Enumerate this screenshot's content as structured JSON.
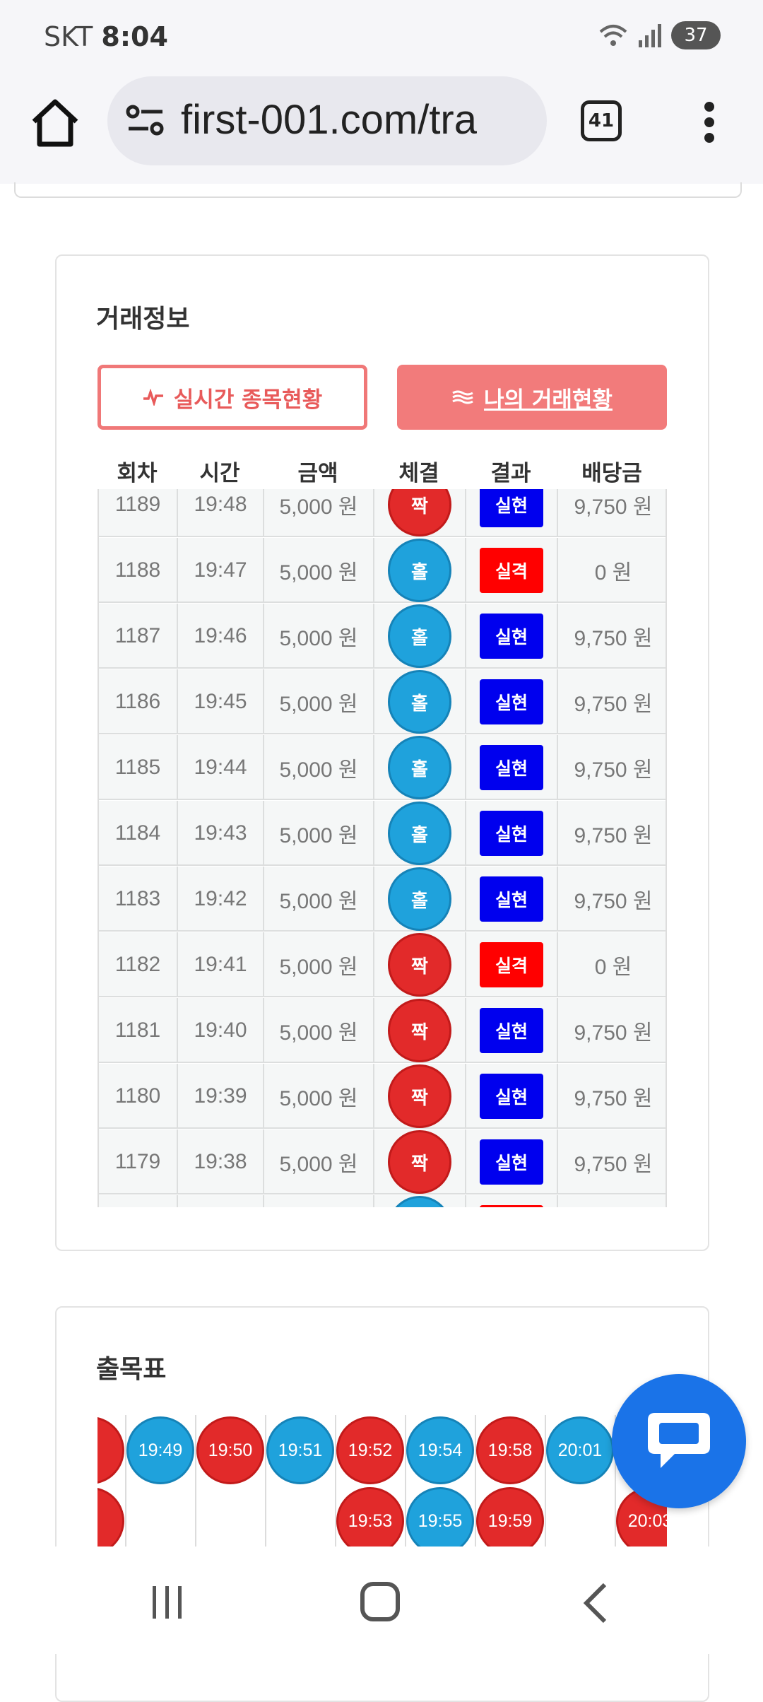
{
  "status": {
    "carrier": "SKT",
    "time": "8:04",
    "battery": "37"
  },
  "browser": {
    "url": "first-001.com/tra",
    "tab_count": "41"
  },
  "trade": {
    "title": "거래정보",
    "live_button": "실시간 종목현황",
    "mine_button": "나의 거래현황",
    "headers": [
      "회차",
      "시간",
      "금액",
      "체결",
      "결과",
      "배당금"
    ],
    "rows": [
      {
        "round": "1189",
        "time": "19:48",
        "amount": "5,000 원",
        "pick": "짝",
        "pick_color": "red",
        "result": "실현",
        "result_type": "win",
        "payout": "9,750 원"
      },
      {
        "round": "1188",
        "time": "19:47",
        "amount": "5,000 원",
        "pick": "홀",
        "pick_color": "blue",
        "result": "실격",
        "result_type": "lose",
        "payout": "0 원"
      },
      {
        "round": "1187",
        "time": "19:46",
        "amount": "5,000 원",
        "pick": "홀",
        "pick_color": "blue",
        "result": "실현",
        "result_type": "win",
        "payout": "9,750 원"
      },
      {
        "round": "1186",
        "time": "19:45",
        "amount": "5,000 원",
        "pick": "홀",
        "pick_color": "blue",
        "result": "실현",
        "result_type": "win",
        "payout": "9,750 원"
      },
      {
        "round": "1185",
        "time": "19:44",
        "amount": "5,000 원",
        "pick": "홀",
        "pick_color": "blue",
        "result": "실현",
        "result_type": "win",
        "payout": "9,750 원"
      },
      {
        "round": "1184",
        "time": "19:43",
        "amount": "5,000 원",
        "pick": "홀",
        "pick_color": "blue",
        "result": "실현",
        "result_type": "win",
        "payout": "9,750 원"
      },
      {
        "round": "1183",
        "time": "19:42",
        "amount": "5,000 원",
        "pick": "홀",
        "pick_color": "blue",
        "result": "실현",
        "result_type": "win",
        "payout": "9,750 원"
      },
      {
        "round": "1182",
        "time": "19:41",
        "amount": "5,000 원",
        "pick": "짝",
        "pick_color": "red",
        "result": "실격",
        "result_type": "lose",
        "payout": "0 원"
      },
      {
        "round": "1181",
        "time": "19:40",
        "amount": "5,000 원",
        "pick": "짝",
        "pick_color": "red",
        "result": "실현",
        "result_type": "win",
        "payout": "9,750 원"
      },
      {
        "round": "1180",
        "time": "19:39",
        "amount": "5,000 원",
        "pick": "짝",
        "pick_color": "red",
        "result": "실현",
        "result_type": "win",
        "payout": "9,750 원"
      },
      {
        "round": "1179",
        "time": "19:38",
        "amount": "5,000 원",
        "pick": "짝",
        "pick_color": "red",
        "result": "실현",
        "result_type": "win",
        "payout": "9,750 원"
      },
      {
        "round": "",
        "time": "",
        "amount": "",
        "pick": "",
        "pick_color": "blue",
        "result": "",
        "result_type": "lose",
        "payout": ""
      }
    ]
  },
  "chart": {
    "title": "출목표",
    "columns": [
      {
        "color": "red",
        "cells": [
          "",
          ""
        ]
      },
      {
        "color": "blue",
        "cells": [
          "19:49"
        ]
      },
      {
        "color": "red",
        "cells": [
          "19:50"
        ]
      },
      {
        "color": "blue",
        "cells": [
          "19:51"
        ]
      },
      {
        "color": "red",
        "cells": [
          "19:52",
          "19:53"
        ]
      },
      {
        "color": "blue",
        "cells": [
          "19:54",
          "19:55"
        ]
      },
      {
        "color": "red",
        "cells": [
          "19:58",
          "19:59"
        ]
      },
      {
        "color": "blue",
        "cells": [
          "20:01"
        ]
      },
      {
        "color": "red",
        "cells": [
          "",
          "20:03"
        ]
      }
    ]
  },
  "colors": {
    "red": "#e22a2a",
    "blue": "#1fa2dc",
    "win": "#0000ee",
    "lose": "#ff0000",
    "accent": "#f27b7b"
  }
}
